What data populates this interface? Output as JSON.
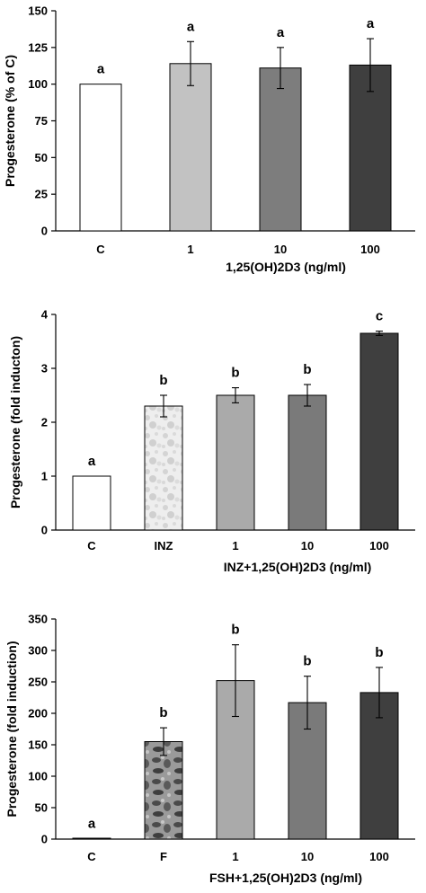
{
  "chart_data": [
    {
      "type": "bar",
      "categories": [
        "C",
        "1",
        "10",
        "100"
      ],
      "values": [
        100,
        114,
        111,
        113
      ],
      "errors": [
        0,
        15,
        14,
        18
      ],
      "labels": [
        "a",
        "a",
        "a",
        "a"
      ],
      "fills": [
        "#ffffff",
        "#c2c2c2",
        "#7d7d7d",
        "#3f3f3f"
      ],
      "ylabel": "Progesterone (% of C)",
      "xlabel": "1,25(OH)2D3 (ng/ml)",
      "ylim": [
        0,
        150
      ],
      "yticks": [
        0,
        25,
        50,
        75,
        100,
        125,
        150
      ],
      "grid": false
    },
    {
      "type": "bar",
      "categories": [
        "C",
        "INZ",
        "1",
        "10",
        "100"
      ],
      "values": [
        1.0,
        2.3,
        2.5,
        2.5,
        3.65
      ],
      "errors": [
        0.0,
        0.2,
        0.14,
        0.2,
        0.04
      ],
      "labels": [
        "a",
        "b",
        "b",
        "b",
        "c"
      ],
      "fills": [
        "#ffffff",
        "pattern-light",
        "#aaaaaa",
        "#7a7a7a",
        "#3f3f3f"
      ],
      "ylabel": "Progesterone (fold inducton)",
      "xlabel": "INZ+1,25(OH)2D3 (ng/ml)",
      "ylim": [
        0,
        4
      ],
      "yticks": [
        0,
        1,
        2,
        3,
        4
      ],
      "grid": false
    },
    {
      "type": "bar",
      "categories": [
        "C",
        "F",
        "1",
        "10",
        "100"
      ],
      "values": [
        1,
        155,
        252,
        217,
        233
      ],
      "errors": [
        0,
        22,
        57,
        42,
        40
      ],
      "labels": [
        "a",
        "b",
        "b",
        "b",
        "b"
      ],
      "fills": [
        "#ffffff",
        "pattern-dark",
        "#aaaaaa",
        "#7a7a7a",
        "#3f3f3f"
      ],
      "ylabel": "Progesterone (fold induction)",
      "xlabel": "FSH+1,25(OH)2D3 (ng/ml)",
      "ylim": [
        0,
        350
      ],
      "yticks": [
        0,
        50,
        100,
        150,
        200,
        250,
        300,
        350
      ],
      "grid": false
    }
  ]
}
